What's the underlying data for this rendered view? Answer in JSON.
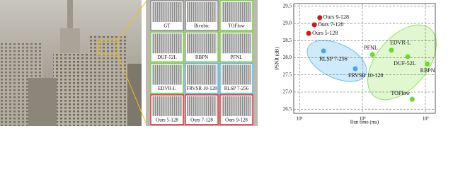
{
  "crops": [
    {
      "label": "GT",
      "color": "#8c8c8c"
    },
    {
      "label": "Bicubic",
      "color": "#8c8c8c"
    },
    {
      "label": "TOFlow",
      "color": "#7ad14a"
    },
    {
      "label": "DUF-52L",
      "color": "#7ad14a"
    },
    {
      "label": "RBPN",
      "color": "#7ad14a"
    },
    {
      "label": "PFNL",
      "color": "#7ad14a"
    },
    {
      "label": "EDVR-L",
      "color": "#7ad14a"
    },
    {
      "label": "FRVSR 10-128",
      "color": "#5bb8e8"
    },
    {
      "label": "RLSP 7-256",
      "color": "#5bb8e8"
    },
    {
      "label": "Ours 5-128",
      "color": "#d93a3a"
    },
    {
      "label": "Ours 7-128",
      "color": "#d93a3a"
    },
    {
      "label": "Ours 9-128",
      "color": "#d93a3a"
    }
  ],
  "chart_data": {
    "type": "scatter",
    "xlabel": "Run time (ms)",
    "ylabel": "PSNR (dB)",
    "log_x": true,
    "grid": true,
    "xlim": [
      8.1,
      1436
    ],
    "ylim": [
      26.38,
      29.58
    ],
    "xticks": [
      {
        "value": 10,
        "label": "10¹"
      },
      {
        "value": 100,
        "label": "10²"
      },
      {
        "value": 1000,
        "label": "10³"
      }
    ],
    "yticks": [
      26.5,
      {
        "value": 27,
        "label": "27.0"
      },
      27.5,
      {
        "value": 28,
        "label": "28.0"
      },
      28.5,
      {
        "value": 29,
        "label": "29.0"
      },
      29.5
    ],
    "series": [
      {
        "color": "#e01010",
        "labels": [
          "Ours 9-128",
          "Ours 7-128",
          "Ours 5-128"
        ],
        "x": [
          21,
          17.2,
          14
        ],
        "values": [
          29.17,
          28.96,
          28.71
        ]
      },
      {
        "color": "#3fa9f5",
        "labels": [
          "RLSP 7-256",
          "FRVSR 10-128"
        ],
        "x": [
          24.1,
          77
        ],
        "values": [
          28.2,
          27.68
        ]
      },
      {
        "color": "#66dd22",
        "labels": [
          "PFNL",
          "EDVR-L",
          "DUF-52L",
          "RBPN",
          "TOFlow"
        ],
        "x": [
          144,
          288,
          525,
          1070,
          617
        ],
        "values": [
          28.09,
          28.22,
          28.03,
          27.82,
          26.79
        ]
      }
    ]
  }
}
